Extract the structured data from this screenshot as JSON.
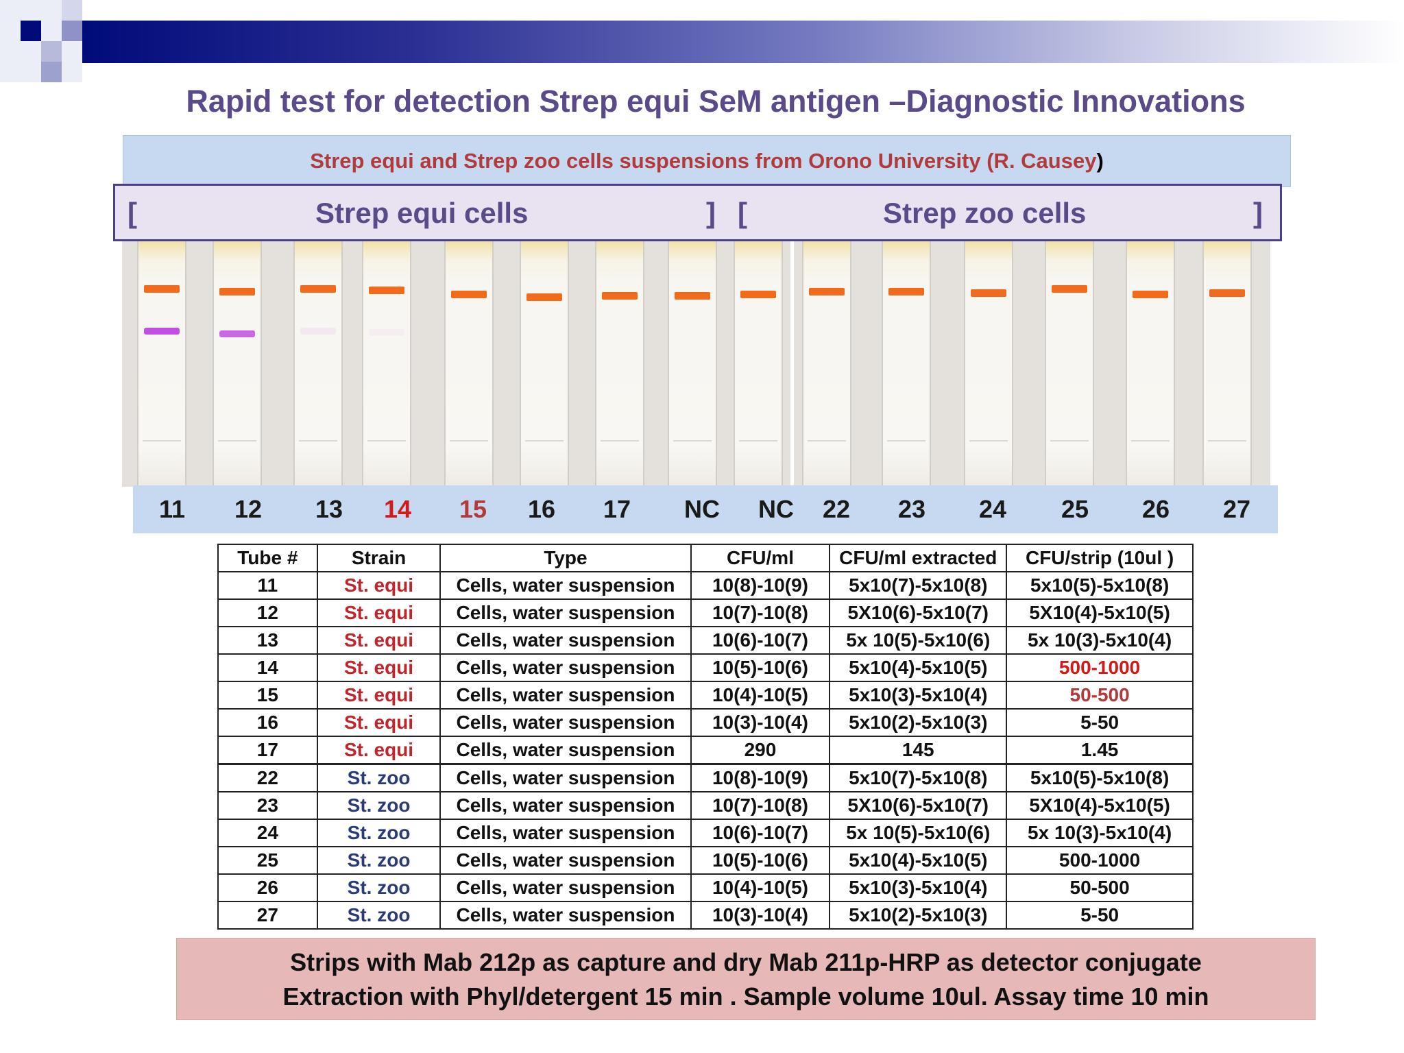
{
  "title": "Rapid test for detection  Strep equi SeM antigen –Diagnostic Innovations",
  "source_banner": {
    "text": "Strep equi and Strep zoo cells suspensions from  Orono University (R. Causey",
    "close_paren": ")"
  },
  "groups": {
    "equi_label": "Strep equi cells",
    "zoo_label": "Strep zoo    cells",
    "bracket_open": "[",
    "bracket_close": "]"
  },
  "tube_numbers": [
    "11",
    "12",
    "13",
    "14",
    "15",
    "16",
    "17",
    "NC",
    "NC",
    "22",
    "23",
    "24",
    "25",
    "26",
    "27"
  ],
  "table": {
    "headers": [
      "Tube #",
      "Strain",
      "Type",
      "CFU/ml",
      "CFU/ml extracted",
      "CFU/strip (10ul )"
    ],
    "rows": [
      [
        "11",
        "St. equi",
        "Cells,  water suspension",
        "10(8)-10(9)",
        "5x10(7)-5x10(8)",
        "5x10(5)-5x10(8)"
      ],
      [
        "12",
        "St. equi",
        "Cells,  water suspension",
        "10(7)-10(8)",
        "5X10(6)-5x10(7)",
        "5X10(4)-5x10(5)"
      ],
      [
        "13",
        "St. equi",
        "Cells,  water suspension",
        "10(6)-10(7)",
        "5x 10(5)-5x10(6)",
        "5x 10(3)-5x10(4)"
      ],
      [
        "14",
        "St. equi",
        "Cells,  water suspension",
        "10(5)-10(6)",
        "5x10(4)-5x10(5)",
        "500-1000"
      ],
      [
        "15",
        "St. equi",
        "Cells,  water suspension",
        "10(4)-10(5)",
        "5x10(3)-5x10(4)",
        "50-500"
      ],
      [
        "16",
        "St. equi",
        "Cells,  water suspension",
        "10(3)-10(4)",
        "5x10(2)-5x10(3)",
        "5-50"
      ],
      [
        "17",
        "St. equi",
        "Cells,  water suspension",
        "290",
        "145",
        "1.45"
      ],
      [
        "22",
        "St. zoo",
        "Cells,  water suspension",
        "10(8)-10(9)",
        "5x10(7)-5x10(8)",
        "5x10(5)-5x10(8)"
      ],
      [
        "23",
        "St. zoo",
        "Cells,  water suspension",
        "10(7)-10(8)",
        "5X10(6)-5x10(7)",
        "5X10(4)-5x10(5)"
      ],
      [
        "24",
        "St. zoo",
        "Cells,  water suspension",
        "10(6)-10(7)",
        "5x 10(5)-5x10(6)",
        "5x 10(3)-5x10(4)"
      ],
      [
        "25",
        "St. zoo",
        "Cells,  water suspension",
        "10(5)-10(6)",
        "5x10(4)-5x10(5)",
        "500-1000"
      ],
      [
        "26",
        "St. zoo",
        "Cells,  water suspension",
        "10(4)-10(5)",
        "5x10(3)-5x10(4)",
        "50-500"
      ],
      [
        "27",
        "St. zoo",
        "Cells,  water suspension",
        "10(3)-10(4)",
        "5x10(2)-5x10(3)",
        "5-50"
      ]
    ]
  },
  "footer": {
    "line1": "Strips  with Mab 212p as  capture and   dry  Mab 211p-HRP as detector  conjugate",
    "line2": "Extraction with  Phyl/detergent  15 min .    Sample volume 10ul.    Assay time 10 min"
  },
  "colors": {
    "header_gradient_start": "#000b7a",
    "title": "#5a4a8a",
    "source_text": "#b33a3a",
    "banner_blue": "#c6d9f0",
    "control_band": "#f26a1c",
    "test_band": "#c050e0",
    "equi_text": "#c0252a",
    "zoo_text": "#2b3a7a",
    "footer_bg": "#e6b8b8"
  }
}
